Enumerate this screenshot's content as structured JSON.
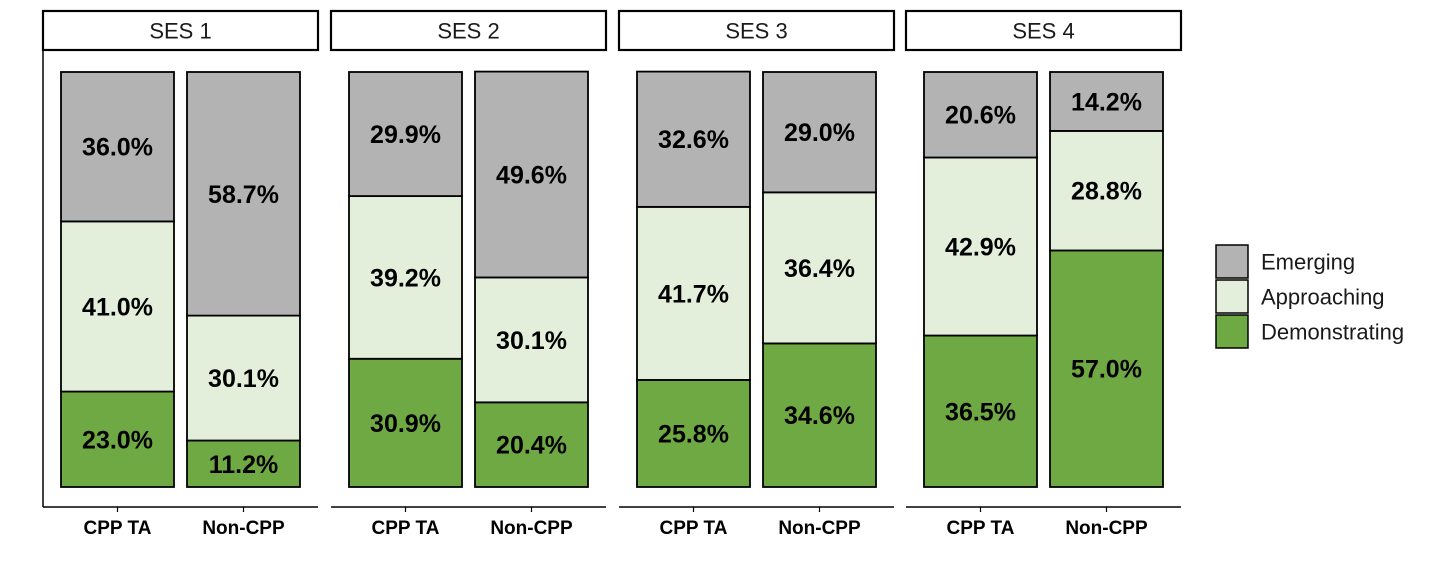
{
  "chart_data": {
    "type": "bar",
    "stacked": true,
    "normalized": true,
    "title": "",
    "xlabel": "",
    "ylabel": "",
    "ylim": [
      0,
      100
    ],
    "grid": false,
    "legend_position": "right",
    "series_order_bottom_to_top": [
      "Demonstrating",
      "Approaching",
      "Emerging"
    ],
    "legend": [
      {
        "name": "Emerging",
        "color": "#b3b3b3"
      },
      {
        "name": "Approaching",
        "color": "#e3efdb"
      },
      {
        "name": "Demonstrating",
        "color": "#6fa944"
      }
    ],
    "panels": [
      {
        "label": "SES 1",
        "categories": [
          "CPP TA",
          "Non-CPP"
        ],
        "bars": [
          {
            "category": "CPP TA",
            "Demonstrating": 23.0,
            "Approaching": 41.0,
            "Emerging": 36.0,
            "labels": {
              "Demonstrating": "23.0%",
              "Approaching": "41.0%",
              "Emerging": "36.0%"
            }
          },
          {
            "category": "Non-CPP",
            "Demonstrating": 11.2,
            "Approaching": 30.1,
            "Emerging": 58.7,
            "labels": {
              "Demonstrating": "11.2%",
              "Approaching": "30.1%",
              "Emerging": "58.7%"
            }
          }
        ]
      },
      {
        "label": "SES 2",
        "categories": [
          "CPP TA",
          "Non-CPP"
        ],
        "bars": [
          {
            "category": "CPP TA",
            "Demonstrating": 30.9,
            "Approaching": 39.2,
            "Emerging": 29.9,
            "labels": {
              "Demonstrating": "30.9%",
              "Approaching": "39.2%",
              "Emerging": "29.9%"
            }
          },
          {
            "category": "Non-CPP",
            "Demonstrating": 20.4,
            "Approaching": 30.1,
            "Emerging": 49.6,
            "labels": {
              "Demonstrating": "20.4%",
              "Approaching": "30.1%",
              "Emerging": "49.6%"
            }
          }
        ]
      },
      {
        "label": "SES 3",
        "categories": [
          "CPP TA",
          "Non-CPP"
        ],
        "bars": [
          {
            "category": "CPP TA",
            "Demonstrating": 25.8,
            "Approaching": 41.7,
            "Emerging": 32.6,
            "labels": {
              "Demonstrating": "25.8%",
              "Approaching": "41.7%",
              "Emerging": "32.6%"
            }
          },
          {
            "category": "Non-CPP",
            "Demonstrating": 34.6,
            "Approaching": 36.4,
            "Emerging": 29.0,
            "labels": {
              "Demonstrating": "34.6%",
              "Approaching": "36.4%",
              "Emerging": "29.0%"
            }
          }
        ]
      },
      {
        "label": "SES 4",
        "categories": [
          "CPP TA",
          "Non-CPP"
        ],
        "bars": [
          {
            "category": "CPP TA",
            "Demonstrating": 36.5,
            "Approaching": 42.9,
            "Emerging": 20.6,
            "labels": {
              "Demonstrating": "36.5%",
              "Approaching": "42.9%",
              "Emerging": "20.6%"
            }
          },
          {
            "category": "Non-CPP",
            "Demonstrating": 57.0,
            "Approaching": 28.8,
            "Emerging": 14.2,
            "labels": {
              "Demonstrating": "57.0%",
              "Approaching": "28.8%",
              "Emerging": "14.2%"
            }
          }
        ]
      }
    ]
  }
}
